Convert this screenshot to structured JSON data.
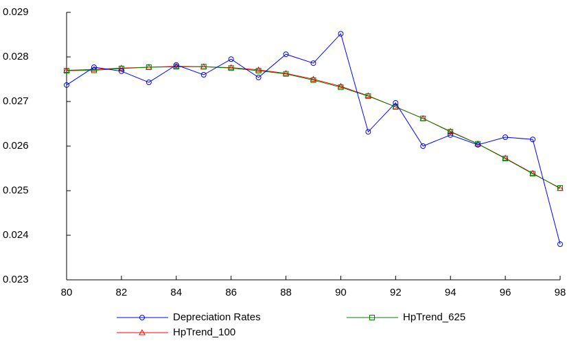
{
  "chart_data": {
    "type": "line",
    "x": [
      80,
      81,
      82,
      83,
      84,
      85,
      86,
      87,
      88,
      89,
      90,
      91,
      92,
      93,
      94,
      95,
      96,
      97,
      98
    ],
    "xlim": [
      80,
      98
    ],
    "xticks": [
      80,
      82,
      84,
      86,
      88,
      90,
      92,
      94,
      96,
      98
    ],
    "ylim": [
      0.023,
      0.029
    ],
    "yticks": [
      0.023,
      0.024,
      0.025,
      0.026,
      0.027,
      0.028,
      0.029
    ],
    "series": [
      {
        "name": "Depreciation Rates",
        "color": "#0000ff",
        "marker": "circle",
        "values": [
          0.02737,
          0.02777,
          0.02768,
          0.02743,
          0.02782,
          0.0276,
          0.02795,
          0.02754,
          0.02806,
          0.02786,
          0.02852,
          0.02632,
          0.02697,
          0.026,
          0.02625,
          0.02603,
          0.0262,
          0.02615,
          0.0238
        ]
      },
      {
        "name": "HpTrend_625",
        "color": "#008000",
        "marker": "square",
        "values": [
          0.02769,
          0.0277,
          0.02774,
          0.02777,
          0.02778,
          0.02778,
          0.02775,
          0.02769,
          0.02762,
          0.02748,
          0.02732,
          0.02712,
          0.02688,
          0.02662,
          0.02632,
          0.02605,
          0.02572,
          0.02538,
          0.02506
        ]
      },
      {
        "name": "HpTrend_100",
        "color": "#ff0000",
        "marker": "triangle",
        "values": [
          0.0277,
          0.02772,
          0.02775,
          0.02777,
          0.02779,
          0.02778,
          0.02776,
          0.02771,
          0.02763,
          0.0275,
          0.02734,
          0.02713,
          0.02688,
          0.02662,
          0.02633,
          0.02605,
          0.02573,
          0.02539,
          0.02505
        ]
      }
    ]
  }
}
